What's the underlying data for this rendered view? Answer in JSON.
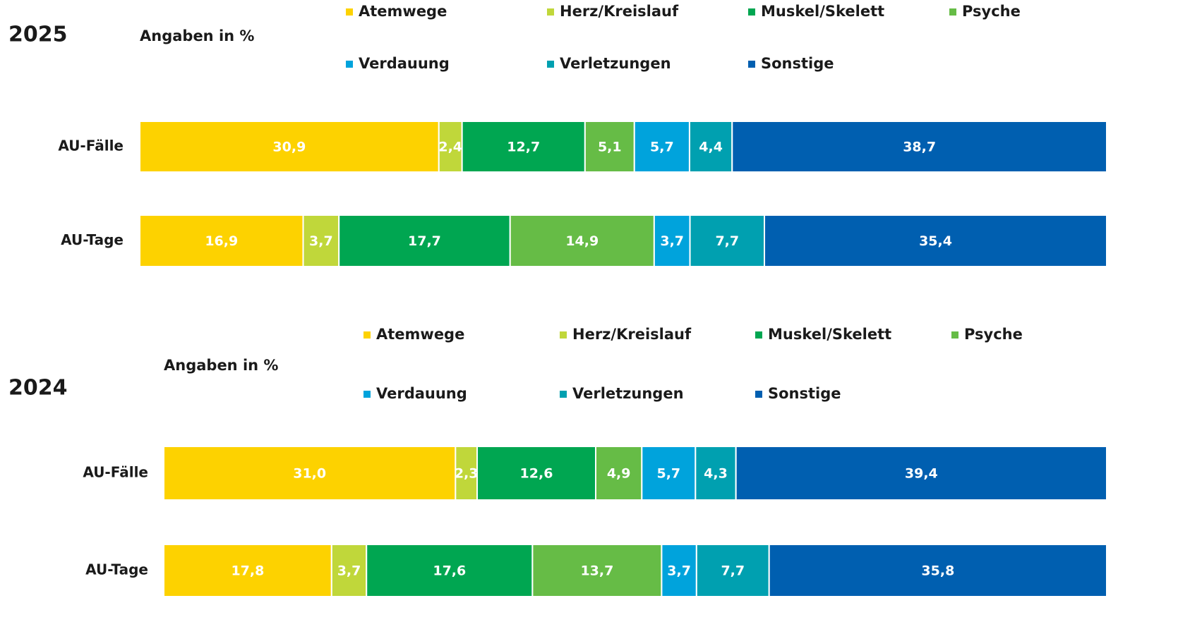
{
  "chart_data": [
    {
      "type": "stacked-bar-horizontal",
      "title": "2025",
      "subtitle": "Angaben in %",
      "categories": [
        "AU-Fälle",
        "AU-Tage"
      ],
      "series": [
        {
          "name": "Atemwege",
          "color": "#fdd200",
          "values": [
            30.9,
            16.9
          ],
          "value_labels": [
            "30,9",
            "16,9"
          ]
        },
        {
          "name": "Herz/Kreislauf",
          "color": "#c0d73a",
          "values": [
            2.4,
            3.7
          ],
          "value_labels": [
            "2,4",
            "3,7"
          ]
        },
        {
          "name": "Muskel/Skelett",
          "color": "#00a651",
          "values": [
            12.7,
            17.7
          ],
          "value_labels": [
            "12,7",
            "17,7"
          ]
        },
        {
          "name": "Psyche",
          "color": "#66bc46",
          "values": [
            5.1,
            14.9
          ],
          "value_labels": [
            "5,1",
            "14,9"
          ]
        },
        {
          "name": "Verdauung",
          "color": "#00a3dc",
          "values": [
            5.7,
            3.7
          ],
          "value_labels": [
            "5,7",
            "3,7"
          ]
        },
        {
          "name": "Verletzungen",
          "color": "#00a0b0",
          "values": [
            4.4,
            7.7
          ],
          "value_labels": [
            "4,4",
            "7,7"
          ]
        },
        {
          "name": "Sonstige",
          "color": "#005fb0",
          "values": [
            38.7,
            35.4
          ],
          "value_labels": [
            "38,7",
            "35,4"
          ]
        }
      ]
    },
    {
      "type": "stacked-bar-horizontal",
      "title": "2024",
      "subtitle": "Angaben in %",
      "categories": [
        "AU-Fälle",
        "AU-Tage"
      ],
      "series": [
        {
          "name": "Atemwege",
          "color": "#fdd200",
          "values": [
            31.0,
            17.8
          ],
          "value_labels": [
            "31,0",
            "17,8"
          ]
        },
        {
          "name": "Herz/Kreislauf",
          "color": "#c0d73a",
          "values": [
            2.3,
            3.7
          ],
          "value_labels": [
            "2,3",
            "3,7"
          ]
        },
        {
          "name": "Muskel/Skelett",
          "color": "#00a651",
          "values": [
            12.6,
            17.6
          ],
          "value_labels": [
            "12,6",
            "17,6"
          ]
        },
        {
          "name": "Psyche",
          "color": "#66bc46",
          "values": [
            4.9,
            13.7
          ],
          "value_labels": [
            "4,9",
            "13,7"
          ]
        },
        {
          "name": "Verdauung",
          "color": "#00a3dc",
          "values": [
            5.7,
            3.7
          ],
          "value_labels": [
            "5,7",
            "3,7"
          ]
        },
        {
          "name": "Verletzungen",
          "color": "#00a0b0",
          "values": [
            4.3,
            7.7
          ],
          "value_labels": [
            "4,3",
            "7,7"
          ]
        },
        {
          "name": "Sonstige",
          "color": "#005fb0",
          "values": [
            39.4,
            35.8
          ],
          "value_labels": [
            "39,4",
            "35,8"
          ]
        }
      ]
    }
  ]
}
